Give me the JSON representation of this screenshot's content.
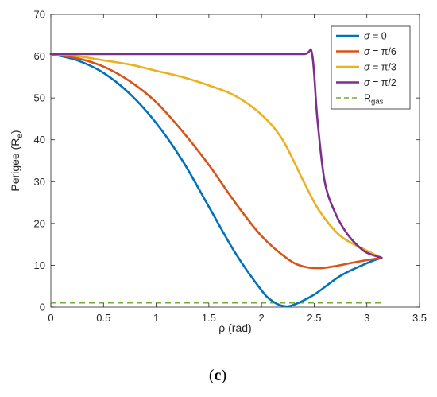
{
  "chart_data": {
    "type": "line",
    "xlabel": "ρ (rad)",
    "ylabel": "Perigee (R_e)",
    "ylabel_main": "Perigee (R",
    "ylabel_sub": "e",
    "ylabel_close": ")",
    "xlim": [
      0,
      3.5
    ],
    "ylim": [
      0,
      70
    ],
    "x_ticks": [
      0,
      0.5,
      1,
      1.5,
      2,
      2.5,
      3,
      3.5
    ],
    "x_tick_labels": [
      "0",
      "0.5",
      "1",
      "1.5",
      "2",
      "2.5",
      "3",
      "3.5"
    ],
    "y_ticks": [
      0,
      10,
      20,
      30,
      40,
      50,
      60,
      70
    ],
    "y_tick_labels": [
      "0",
      "10",
      "20",
      "30",
      "40",
      "50",
      "60",
      "70"
    ],
    "grid": false,
    "legend_position": "top-right",
    "series": [
      {
        "name": "σ = 0",
        "name_symbol": "σ",
        "name_rest": " = 0",
        "color": "#0072BD",
        "style": "solid",
        "x": [
          0,
          0.25,
          0.5,
          0.75,
          1.0,
          1.25,
          1.5,
          1.75,
          2.0,
          2.1,
          2.2,
          2.3,
          2.5,
          2.75,
          3.0,
          3.14
        ],
        "y": [
          60.5,
          59,
          56,
          51,
          44,
          35,
          24,
          13,
          4,
          1.5,
          0.3,
          0.5,
          3,
          7.5,
          10.5,
          11.8
        ]
      },
      {
        "name": "σ = π/6",
        "name_symbol": "σ",
        "name_rest": " = π/6",
        "color": "#D95319",
        "style": "solid",
        "x": [
          0,
          0.25,
          0.5,
          0.75,
          1.0,
          1.25,
          1.5,
          1.75,
          2.0,
          2.25,
          2.4,
          2.55,
          2.7,
          2.9,
          3.14
        ],
        "y": [
          60.5,
          59.5,
          57.5,
          54,
          49,
          42,
          34,
          25,
          17,
          11.5,
          9.7,
          9.3,
          9.8,
          10.8,
          11.8
        ]
      },
      {
        "name": "σ = π/3",
        "name_symbol": "σ",
        "name_rest": " = π/3",
        "color": "#EDB120",
        "style": "solid",
        "x": [
          0,
          0.25,
          0.5,
          0.75,
          1.0,
          1.25,
          1.5,
          1.75,
          2.0,
          2.2,
          2.4,
          2.55,
          2.75,
          3.0,
          3.14
        ],
        "y": [
          60.5,
          60,
          59,
          58,
          56.5,
          55,
          53,
          50.5,
          46,
          40,
          30,
          23,
          17,
          13.5,
          11.8
        ]
      },
      {
        "name": "σ = π/2",
        "name_symbol": "σ",
        "name_rest": " = π/2",
        "color": "#7E2F8E",
        "style": "solid",
        "x": [
          0,
          0.5,
          1.0,
          1.5,
          2.0,
          2.4,
          2.48,
          2.53,
          2.6,
          2.7,
          2.8,
          2.9,
          3.0,
          3.14
        ],
        "y": [
          60.5,
          60.5,
          60.5,
          60.5,
          60.5,
          60.5,
          60.5,
          45,
          30,
          22.5,
          18,
          15,
          13,
          11.8
        ]
      },
      {
        "name": "R_gas",
        "name_main": "R",
        "name_sub": "gas",
        "color": "#77AC30",
        "style": "dashed",
        "x": [
          0,
          3.14
        ],
        "y": [
          1,
          1
        ]
      }
    ]
  },
  "caption": {
    "open": "(",
    "letter": "c",
    "close": ")"
  }
}
